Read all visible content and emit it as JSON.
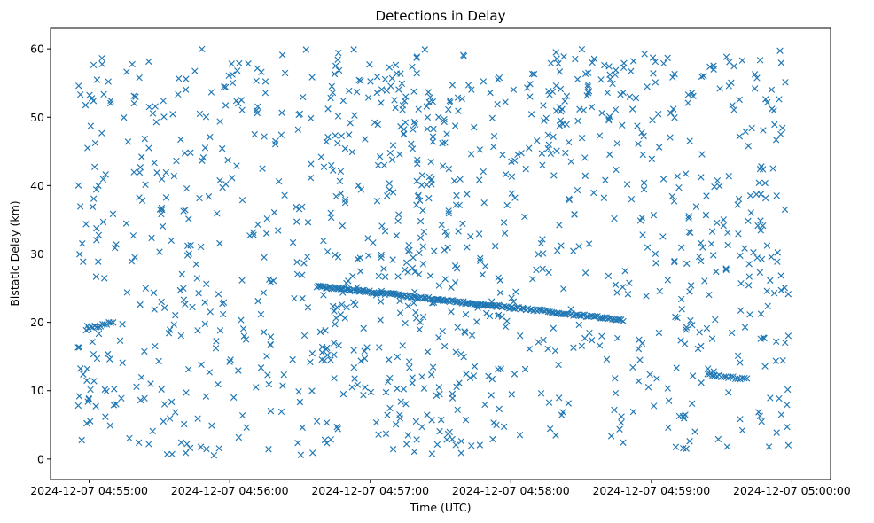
{
  "chart_data": {
    "type": "scatter",
    "title": "Detections in Delay",
    "xlabel": "Time (UTC)",
    "ylabel": "Bistatic Delay (km)",
    "marker": "x",
    "color": "#1f77b4",
    "x_unit": "minutes since 2024-12-07 04:55:00",
    "xlim": [
      -0.275,
      5.275
    ],
    "ylim": [
      -3,
      63
    ],
    "xticks": [
      {
        "value": 0,
        "label": "2024-12-07 04:55:00"
      },
      {
        "value": 1,
        "label": "2024-12-07 04:56:00"
      },
      {
        "value": 2,
        "label": "2024-12-07 04:57:00"
      },
      {
        "value": 3,
        "label": "2024-12-07 04:58:00"
      },
      {
        "value": 4,
        "label": "2024-12-07 04:59:00"
      },
      {
        "value": 5,
        "label": "2024-12-07 05:00:00"
      }
    ],
    "yticks": [
      {
        "value": 0,
        "label": "0"
      },
      {
        "value": 10,
        "label": "10"
      },
      {
        "value": 20,
        "label": "20"
      },
      {
        "value": 30,
        "label": "30"
      },
      {
        "value": 40,
        "label": "40"
      },
      {
        "value": 50,
        "label": "50"
      },
      {
        "value": 60,
        "label": "60"
      }
    ],
    "track_segments": [
      {
        "x0": -0.02,
        "y0": 19.0,
        "x1": 0.17,
        "y1": 20.0,
        "count": 14
      },
      {
        "x0": 1.62,
        "y0": 25.3,
        "x1": 2.9,
        "y1": 22.4,
        "count": 120
      },
      {
        "x0": 2.9,
        "y0": 22.4,
        "x1": 3.8,
        "y1": 20.3,
        "count": 70
      },
      {
        "x0": 4.4,
        "y0": 12.4,
        "x1": 4.68,
        "y1": 11.7,
        "count": 18
      }
    ],
    "clutter_points": {
      "count": 900,
      "x_range": [
        -0.02,
        4.98
      ],
      "y_range": [
        0.5,
        60
      ],
      "note": "uniformly scattered false detections across the full window"
    },
    "clusters": [
      {
        "x": 0.0,
        "x_spread": 0.08,
        "y": 30,
        "y_spread": 28,
        "count": 40
      },
      {
        "x": 2.15,
        "x_spread": 0.5,
        "y": 30,
        "y_spread": 28,
        "count": 150
      },
      {
        "x": 3.5,
        "x_spread": 0.25,
        "y": 55,
        "y_spread": 5,
        "count": 30
      },
      {
        "x": 4.6,
        "x_spread": 0.35,
        "y": 40,
        "y_spread": 20,
        "count": 40
      }
    ]
  }
}
